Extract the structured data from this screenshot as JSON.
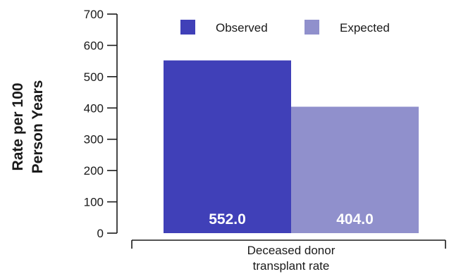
{
  "chart_data": {
    "type": "bar",
    "title": "",
    "ylabel": [
      "Rate per 100",
      "Person Years"
    ],
    "xlabel": "",
    "categories": [
      [
        "Deceased donor",
        "transplant rate"
      ]
    ],
    "ylim": [
      0,
      700
    ],
    "yticks": [
      0,
      100,
      200,
      300,
      400,
      500,
      600,
      700
    ],
    "grid": false,
    "legend_position": "top",
    "series": [
      {
        "name": "Observed",
        "color": "#4040b8",
        "values": [
          552.0
        ],
        "data_labels": [
          "552.0"
        ]
      },
      {
        "name": "Expected",
        "color": "#9090cc",
        "values": [
          404.0
        ],
        "data_labels": [
          "404.0"
        ]
      }
    ]
  }
}
